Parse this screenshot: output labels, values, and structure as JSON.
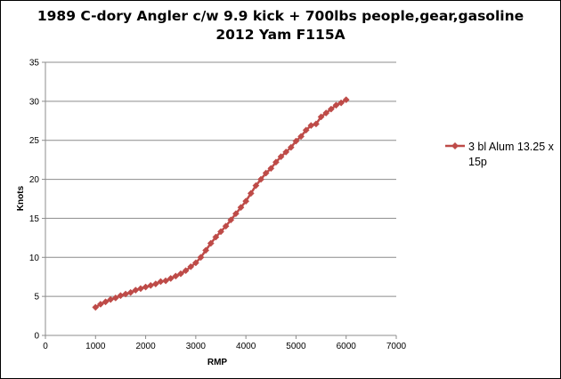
{
  "chart_data": {
    "type": "line",
    "title": [
      "1989 C-dory Angler c/w 9.9 kick + 700lbs people,gear,gasoline",
      "2012 Yam F115A"
    ],
    "xlabel": "RMP",
    "ylabel": "Knots",
    "xlim": [
      0,
      7000
    ],
    "ylim": [
      0,
      35
    ],
    "xticks": [
      0,
      1000,
      2000,
      3000,
      4000,
      5000,
      6000,
      7000
    ],
    "yticks": [
      0,
      5,
      10,
      15,
      20,
      25,
      30,
      35
    ],
    "grid": "horizontal",
    "legend_position": "right",
    "series": [
      {
        "name": "3 bl Alum 13.25 x 15p",
        "color": "#be4b48",
        "marker": "diamond",
        "points": [
          [
            1000,
            3.6
          ],
          [
            1100,
            4.0
          ],
          [
            1200,
            4.3
          ],
          [
            1300,
            4.6
          ],
          [
            1400,
            4.8
          ],
          [
            1500,
            5.1
          ],
          [
            1600,
            5.3
          ],
          [
            1700,
            5.5
          ],
          [
            1800,
            5.8
          ],
          [
            1900,
            6.0
          ],
          [
            2000,
            6.2
          ],
          [
            2100,
            6.4
          ],
          [
            2200,
            6.6
          ],
          [
            2300,
            6.9
          ],
          [
            2400,
            7.0
          ],
          [
            2500,
            7.3
          ],
          [
            2600,
            7.6
          ],
          [
            2700,
            7.9
          ],
          [
            2800,
            8.3
          ],
          [
            2900,
            8.8
          ],
          [
            3000,
            9.3
          ],
          [
            3100,
            10.0
          ],
          [
            3200,
            10.9
          ],
          [
            3300,
            11.8
          ],
          [
            3400,
            12.6
          ],
          [
            3500,
            13.3
          ],
          [
            3600,
            14.0
          ],
          [
            3700,
            14.8
          ],
          [
            3800,
            15.6
          ],
          [
            3900,
            16.4
          ],
          [
            4000,
            17.2
          ],
          [
            4100,
            18.2
          ],
          [
            4200,
            19.2
          ],
          [
            4300,
            20.0
          ],
          [
            4400,
            20.8
          ],
          [
            4500,
            21.4
          ],
          [
            4600,
            22.2
          ],
          [
            4700,
            22.9
          ],
          [
            4800,
            23.5
          ],
          [
            4900,
            24.1
          ],
          [
            5000,
            24.9
          ],
          [
            5100,
            25.5
          ],
          [
            5200,
            26.3
          ],
          [
            5300,
            26.9
          ],
          [
            5400,
            27.1
          ],
          [
            5500,
            28.0
          ],
          [
            5600,
            28.5
          ],
          [
            5700,
            29.0
          ],
          [
            5800,
            29.5
          ],
          [
            5900,
            29.8
          ],
          [
            6000,
            30.2
          ]
        ]
      }
    ]
  }
}
